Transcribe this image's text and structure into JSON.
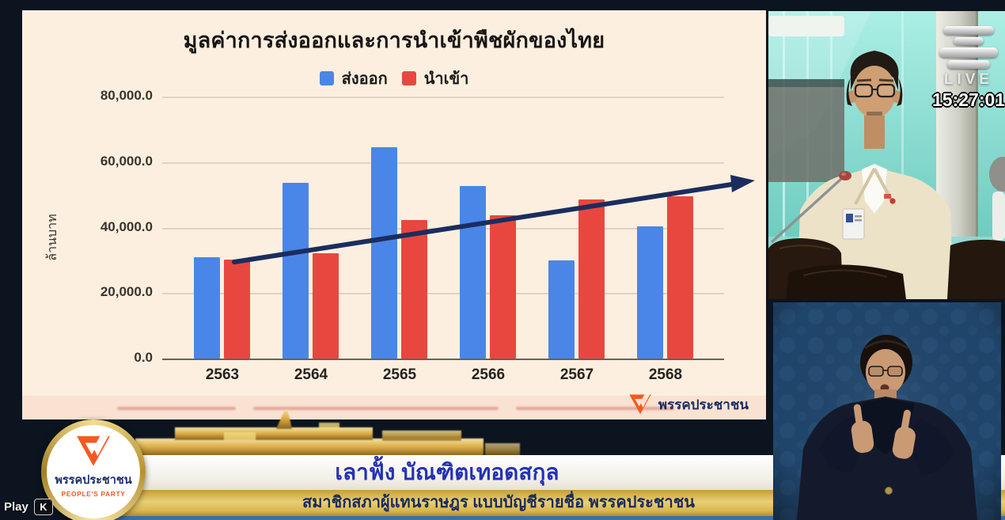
{
  "chart_data": {
    "type": "bar",
    "title": "มูลค่าการส่งออกและการนำเข้าพืชผักของไทย",
    "xlabel": "",
    "ylabel": "ล้านบาท",
    "categories": [
      "2563",
      "2564",
      "2565",
      "2566",
      "2567",
      "2568"
    ],
    "series": [
      {
        "name": "ส่งออก",
        "color": "#4a86e8",
        "values": [
          31000,
          53700,
          64500,
          52700,
          30000,
          40400
        ]
      },
      {
        "name": "นำเข้า",
        "color": "#e8473f",
        "values": [
          30200,
          32200,
          42300,
          43700,
          48600,
          49500
        ]
      }
    ],
    "ylim": [
      0,
      80000
    ],
    "ytick_labels": [
      "80,000.0",
      "60,000.0",
      "40,000.0",
      "20,000.0",
      "0.0"
    ],
    "grid": true,
    "legend_position": "top",
    "annotations": [
      {
        "type": "trend-arrow",
        "direction": "up-right",
        "color": "#1b2d5e"
      }
    ]
  },
  "chart_watermark": {
    "label": "พรรคประชาชน"
  },
  "live": {
    "label": "LIVE",
    "timestamp": "15:27:01"
  },
  "lower_third": {
    "speaker_name": "เลาฟั้ง บัณฑิตเทอดสกุล",
    "speaker_role": "สมาชิกสภาผู้แทนราษฎร แบบบัญชีรายชื่อ พรรคประชาชน"
  },
  "party_badge": {
    "name_th": "พรรคประชาชน",
    "name_en": "PEOPLE'S PARTY"
  },
  "player": {
    "tooltip_label": "Play",
    "shortcut_key": "K"
  },
  "colors": {
    "export_bar": "#4a86e8",
    "import_bar": "#e8473f",
    "chart_bg": "#fcefdf",
    "trend_arrow": "#1b2d5e",
    "banner_gold": "#d9b44a",
    "accent_orange": "#f25a1f",
    "bottom_strip_blue": "#3e6ea6"
  }
}
